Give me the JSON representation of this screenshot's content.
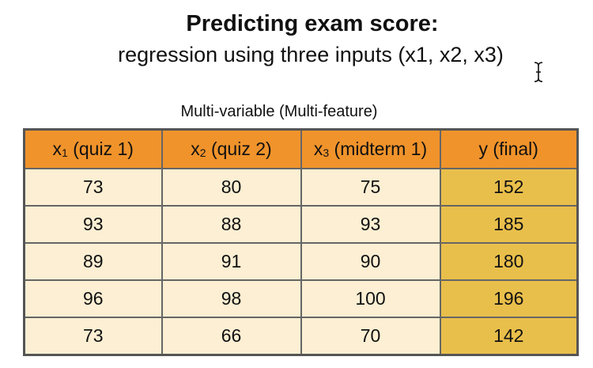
{
  "title": "Predicting exam score:",
  "subtitle": "regression using three inputs (x1, x2, x3)",
  "caption": "Multi-variable (Multi-feature)",
  "cursor_icon": "text-cursor-icon",
  "table": {
    "headers": [
      {
        "var": "x",
        "sub": "1",
        "label": " (quiz 1)"
      },
      {
        "var": "x",
        "sub": "2",
        "label": " (quiz 2)"
      },
      {
        "var": "x",
        "sub": "3",
        "label": " (midterm 1)"
      },
      {
        "var": "y",
        "sub": "",
        "label": " (final)"
      }
    ],
    "rows": [
      [
        "73",
        "80",
        "75",
        "152"
      ],
      [
        "93",
        "88",
        "93",
        "185"
      ],
      [
        "89",
        "91",
        "90",
        "180"
      ],
      [
        "96",
        "98",
        "100",
        "196"
      ],
      [
        "73",
        "66",
        "70",
        "142"
      ]
    ]
  },
  "colors": {
    "header_bg": "#f0932b",
    "cell_bg": "#fcefd3",
    "target_column_bg": "#e9bf4b",
    "border": "#666666"
  }
}
